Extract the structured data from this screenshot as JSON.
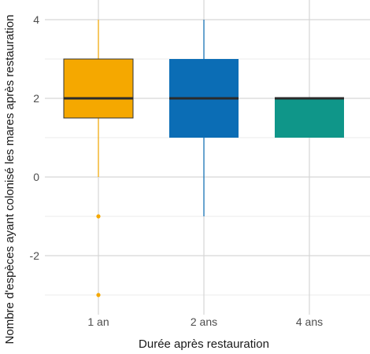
{
  "chart_data": {
    "type": "boxplot",
    "xlabel": "Durée après restauration",
    "ylabel": "Nombre d'espèces ayant colonisé les mares après restauration",
    "ylim": [
      -3.2,
      4.2
    ],
    "yticks": [
      -2,
      0,
      2,
      4
    ],
    "ytick_labels": [
      "-2",
      "0",
      "2",
      "4"
    ],
    "grid": true,
    "categories": [
      "1 an",
      "2 ans",
      "4 ans"
    ],
    "boxes": [
      {
        "category": "1 an",
        "color": "#F5A800",
        "q1": 1.5,
        "median": 2,
        "q3": 3,
        "whisker_low": 0,
        "whisker_high": 4,
        "outliers": [
          -1,
          -3
        ]
      },
      {
        "category": "2 ans",
        "color": "#0B6DB5",
        "q1": 1,
        "median": 2,
        "q3": 3,
        "whisker_low": -1,
        "whisker_high": 4,
        "outliers": []
      },
      {
        "category": "4 ans",
        "color": "#0F9689",
        "q1": 1,
        "median": 2,
        "q3": 2,
        "whisker_low": 1,
        "whisker_high": 2,
        "outliers": []
      }
    ]
  }
}
